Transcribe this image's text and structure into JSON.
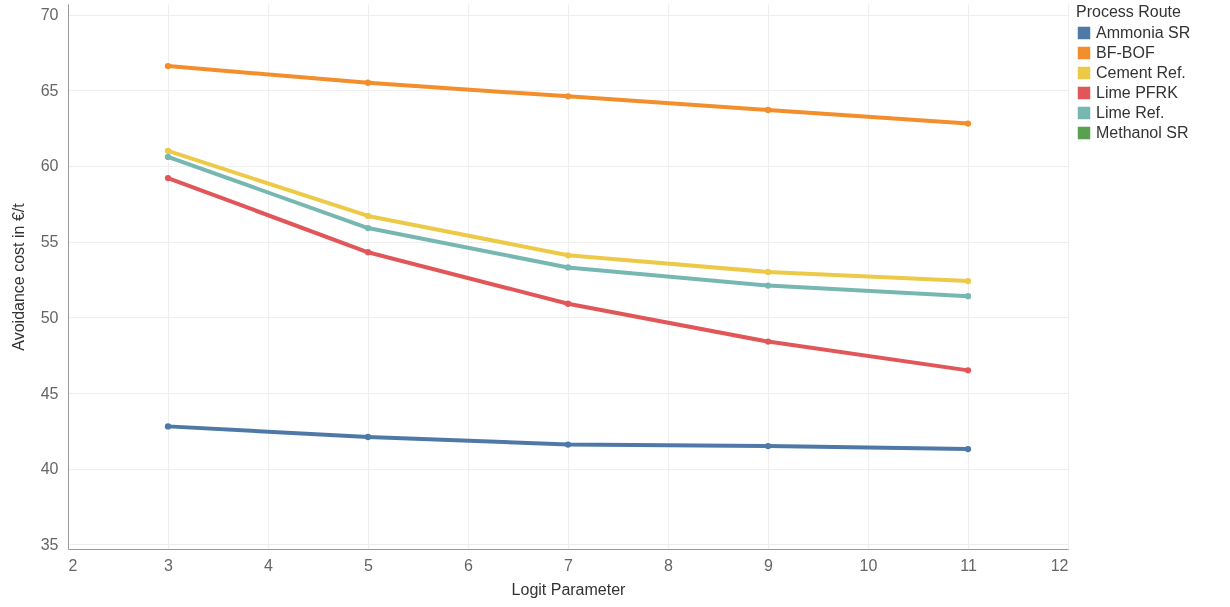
{
  "chart_data": {
    "type": "line",
    "xlabel": "Logit Parameter",
    "ylabel": "Avoidance cost in €/t",
    "legend_title": "Process Route",
    "x": [
      3,
      5,
      7,
      9,
      11
    ],
    "series": [
      {
        "name": "Ammonia SR",
        "color": "#4e79a7",
        "values": [
          42.8,
          42.1,
          41.6,
          41.5,
          41.3
        ]
      },
      {
        "name": "BF-BOF",
        "color": "#f28e2b",
        "values": [
          66.6,
          65.5,
          64.6,
          63.7,
          62.8
        ]
      },
      {
        "name": "Cement Ref.",
        "color": "#edc948",
        "values": [
          61.0,
          56.7,
          54.1,
          53.0,
          52.4
        ]
      },
      {
        "name": "Lime PFRK",
        "color": "#e15759",
        "values": [
          59.2,
          54.3,
          50.9,
          48.4,
          46.5
        ]
      },
      {
        "name": "Lime Ref.",
        "color": "#76b7b2",
        "values": [
          60.6,
          55.9,
          53.3,
          52.1,
          51.4
        ]
      },
      {
        "name": "Methanol SR",
        "color": "#59a14f",
        "values": [
          null,
          null,
          null,
          null,
          null
        ]
      }
    ],
    "xlim": [
      2,
      12
    ],
    "xticks": [
      2,
      3,
      4,
      5,
      6,
      7,
      8,
      9,
      10,
      11,
      12
    ],
    "ylim": [
      34.7,
      70.7
    ],
    "yticks": [
      35,
      40,
      45,
      50,
      55,
      60,
      65,
      70
    ],
    "grid": true,
    "legend": "top right",
    "marker": "circle",
    "line_style": "solid"
  }
}
